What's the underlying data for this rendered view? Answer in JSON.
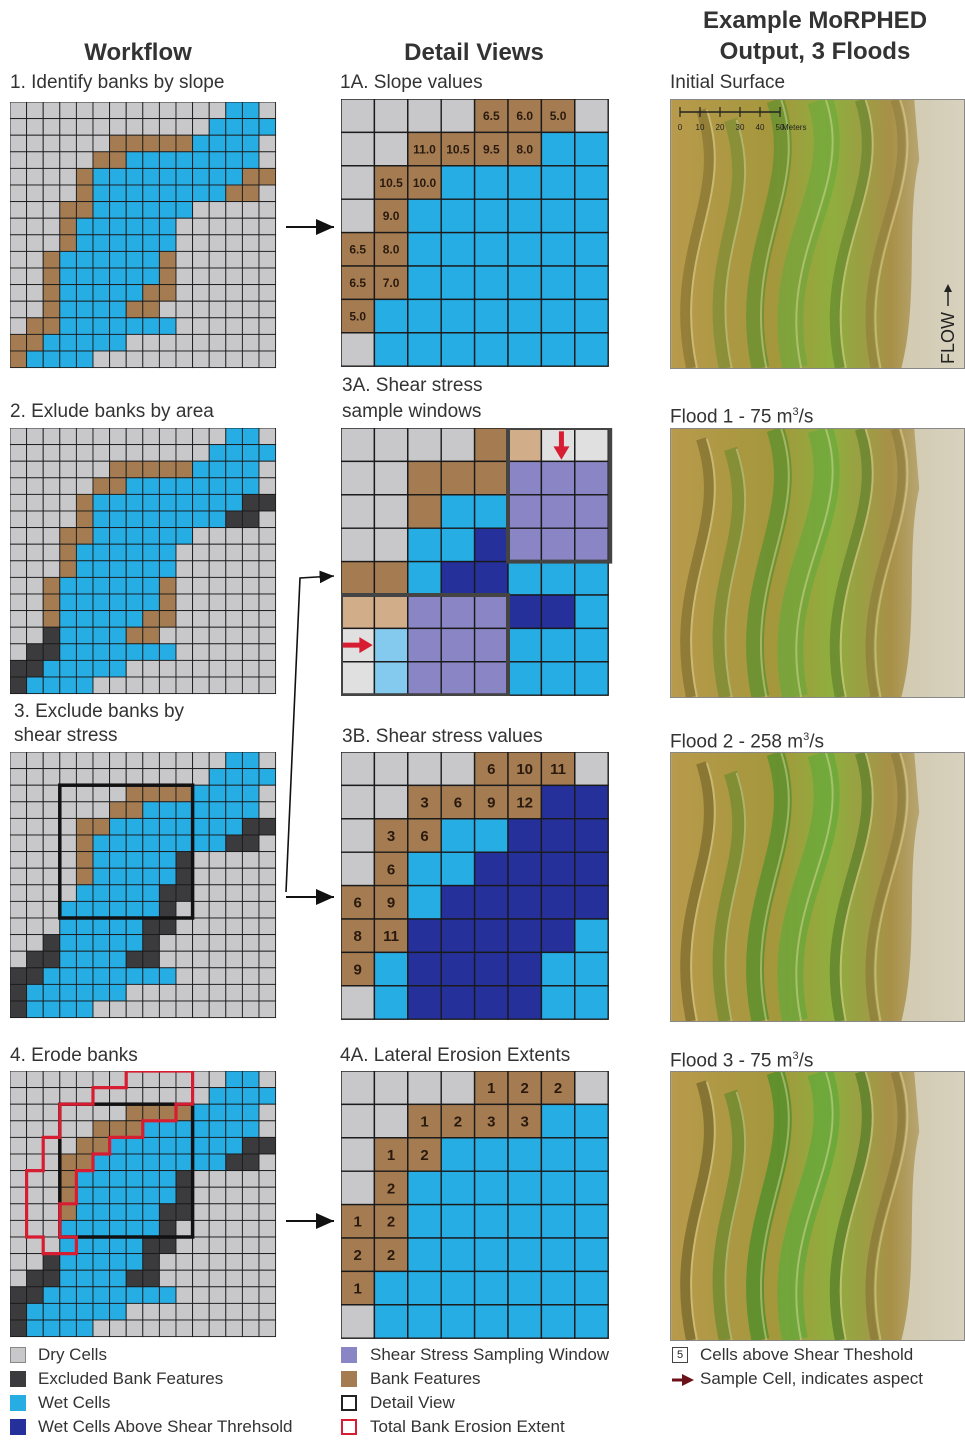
{
  "headers": {
    "workflow": "Workflow",
    "detail": "Detail Views",
    "morphed_line1": "Example MoRPHED",
    "morphed_line2": "Output, 3 Floods"
  },
  "steps": {
    "step1": "1. Identify banks by slope",
    "step2": "2. Exlude banks by area",
    "step3_line1": "3. Exclude banks by",
    "step3_line2": "shear stress",
    "step4": "4. Erode banks"
  },
  "details": {
    "d1a": "1A. Slope values",
    "d3a_line1": "3A. Shear stress",
    "d3a_line2": "sample windows",
    "d3b": "3B. Shear stress values",
    "d4a": "4A. Lateral Erosion Extents"
  },
  "outputs": {
    "initial": "Initial Surface",
    "flood1_prefix": "Flood 1 - 75 m",
    "flood1_sup": "3",
    "flood1_suffix": "/s",
    "flood2_prefix": "Flood 2 - 258 m",
    "flood2_sup": "3",
    "flood2_suffix": "/s",
    "flood3_prefix": "Flood 3 - 75 m",
    "flood3_sup": "3",
    "flood3_suffix": "/s",
    "scale_label": "Meters",
    "scale_ticks": [
      "0",
      "10",
      "20",
      "30",
      "40",
      "50"
    ],
    "flow_label": "FLOW"
  },
  "slope_values": [
    [
      "",
      "",
      "",
      "",
      "6.5",
      "6.0",
      "5.0",
      ""
    ],
    [
      "",
      "",
      "11.0",
      "10.5",
      "9.5",
      "8.0",
      "",
      ""
    ],
    [
      "",
      "10.5",
      "10.0",
      "",
      "",
      "",
      "",
      ""
    ],
    [
      "",
      "9.0",
      "",
      "",
      "",
      "",
      "",
      ""
    ],
    [
      "6.5",
      "8.0",
      "",
      "",
      "",
      "",
      "",
      ""
    ],
    [
      "6.5",
      "7.0",
      "",
      "",
      "",
      "",
      "",
      ""
    ],
    [
      "5.0",
      "",
      "",
      "",
      "",
      "",
      "",
      ""
    ],
    [
      "",
      "",
      "",
      "",
      "",
      "",
      "",
      ""
    ]
  ],
  "shear_values": [
    [
      "",
      "",
      "",
      "",
      "6",
      "10",
      "11",
      ""
    ],
    [
      "",
      "",
      "3",
      "6",
      "9",
      "12",
      "",
      ""
    ],
    [
      "",
      "3",
      "6",
      "",
      "",
      "",
      "",
      ""
    ],
    [
      "",
      "6",
      "",
      "",
      "",
      "",
      "",
      ""
    ],
    [
      "6",
      "9",
      "",
      "",
      "",
      "",
      "",
      ""
    ],
    [
      "8",
      "11",
      "",
      "",
      "",
      "",
      "",
      ""
    ],
    [
      "9",
      "",
      "",
      "",
      "",
      "",
      "",
      ""
    ],
    [
      "",
      "",
      "",
      "",
      "",
      "",
      "",
      ""
    ]
  ],
  "erosion_values": [
    [
      "",
      "",
      "",
      "",
      "1",
      "2",
      "2",
      ""
    ],
    [
      "",
      "",
      "1",
      "2",
      "3",
      "3",
      "",
      ""
    ],
    [
      "",
      "1",
      "2",
      "",
      "",
      "",
      "",
      ""
    ],
    [
      "",
      "2",
      "",
      "",
      "",
      "",
      "",
      ""
    ],
    [
      "1",
      "2",
      "",
      "",
      "",
      "",
      "",
      ""
    ],
    [
      "2",
      "2",
      "",
      "",
      "",
      "",
      "",
      ""
    ],
    [
      "1",
      "",
      "",
      "",
      "",
      "",
      "",
      ""
    ],
    [
      "",
      "",
      "",
      "",
      "",
      "",
      "",
      ""
    ]
  ],
  "legend": {
    "dry": "Dry Cells",
    "excluded": "Excluded Bank Features",
    "wet": "Wet Cells",
    "wet_above": "Wet Cells Above Shear Threhsold",
    "window": "Shear Stress Sampling Window",
    "bank": "Bank Features",
    "detail_view": "Detail View",
    "erosion_extent": "Total Bank Erosion Extent",
    "cells_above_box": "5",
    "cells_above": "Cells above Shear Theshold",
    "sample_cell": "Sample Cell, indicates aspect"
  },
  "colors": {
    "dry": "#c8c8ca",
    "excluded": "#3b3b3d",
    "wet": "#26ade4",
    "wet_above": "#26309a",
    "window": "#8a86c6",
    "bank": "#a57c52",
    "bank_light": "#d2ad8a",
    "grid_line": "#1a1a1a",
    "erosion_outline": "#d71d32",
    "arrow_red": "#d71d32",
    "arrow_dark": "#6b1218"
  }
}
